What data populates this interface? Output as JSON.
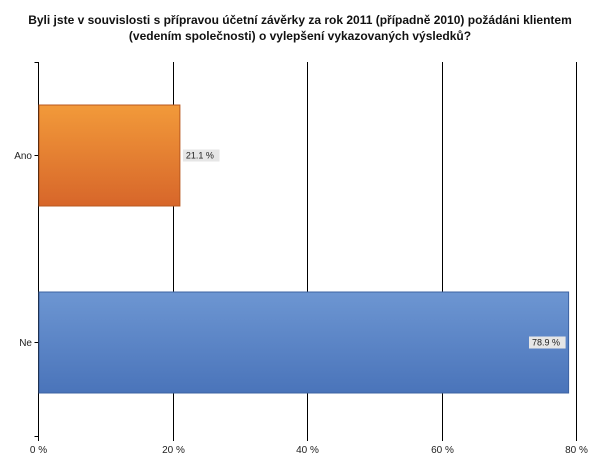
{
  "chart_data": {
    "type": "bar",
    "orientation": "horizontal",
    "title_line1": "Byli jste v souvislosti s přípravou účetní závěrky za rok 2011 (případně 2010) požádáni klientem",
    "title_line2": "(vedením společnosti) o vylepšení vykazovaných výsledků?",
    "categories": [
      "Ano",
      "Ne"
    ],
    "values": [
      21.1,
      78.9
    ],
    "data_labels": [
      "21.1 %",
      "78.9 %"
    ],
    "colors": [
      "#E4772A",
      "#5580C4"
    ],
    "xlim": [
      0,
      80
    ],
    "xticks": [
      0,
      20,
      40,
      60,
      80
    ],
    "xtick_labels": [
      "0 %",
      "20 %",
      "40 %",
      "60 %",
      "80 %"
    ],
    "grid": true,
    "legend": "none"
  }
}
